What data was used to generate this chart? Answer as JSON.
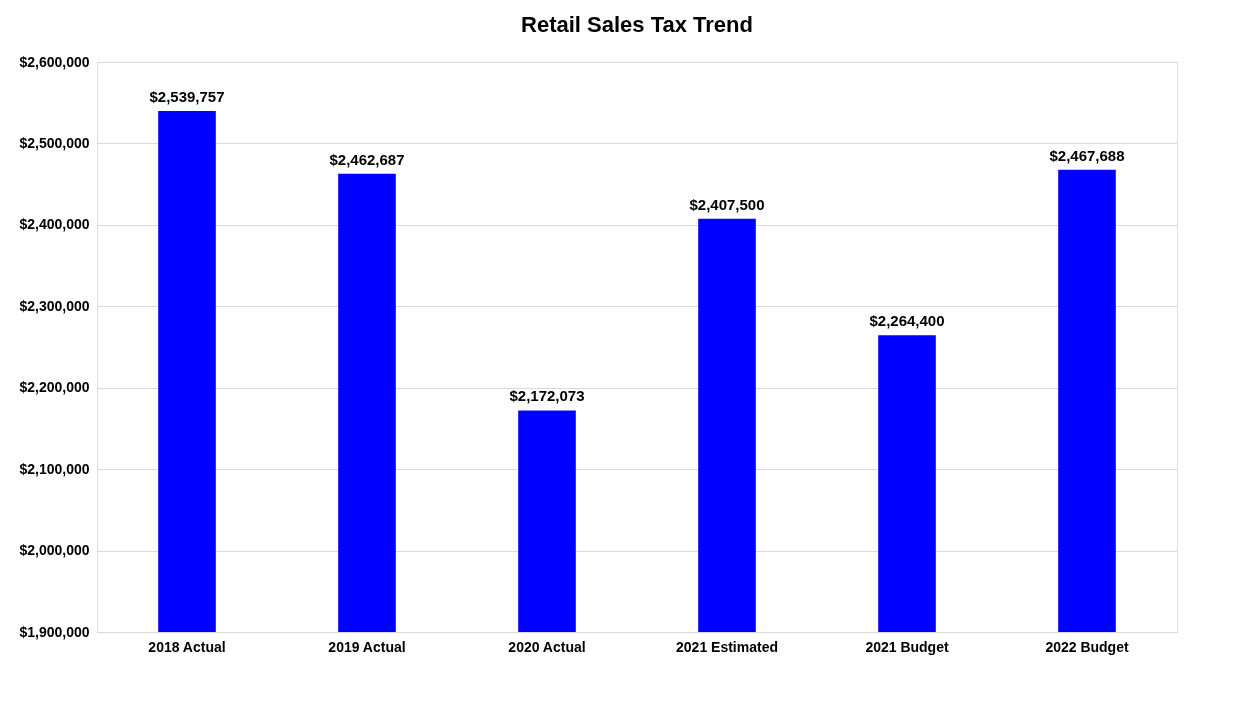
{
  "chart_data": {
    "type": "bar",
    "title": "Retail Sales Tax Trend",
    "categories": [
      "2018 Actual",
      "2019 Actual",
      "2020 Actual",
      "2021 Estimated",
      "2021 Budget",
      "2022 Budget"
    ],
    "values": [
      2539757,
      2462687,
      2172073,
      2407500,
      2264400,
      2467688
    ],
    "value_labels": [
      "$2,539,757",
      "$2,462,687",
      "$2,172,073",
      "$2,407,500",
      "$2,264,400",
      "$2,467,688"
    ],
    "color": "#0000ff",
    "ylim": [
      1900000,
      2600000
    ],
    "yticks": [
      {
        "value": 1900000,
        "label": "$1,900,000"
      },
      {
        "value": 2000000,
        "label": "$2,000,000"
      },
      {
        "value": 2100000,
        "label": "$2,100,000"
      },
      {
        "value": 2200000,
        "label": "$2,200,000"
      },
      {
        "value": 2300000,
        "label": "$2,300,000"
      },
      {
        "value": 2400000,
        "label": "$2,400,000"
      },
      {
        "value": 2500000,
        "label": "$2,500,000"
      },
      {
        "value": 2600000,
        "label": "$2,600,000"
      }
    ],
    "grid": "y"
  }
}
